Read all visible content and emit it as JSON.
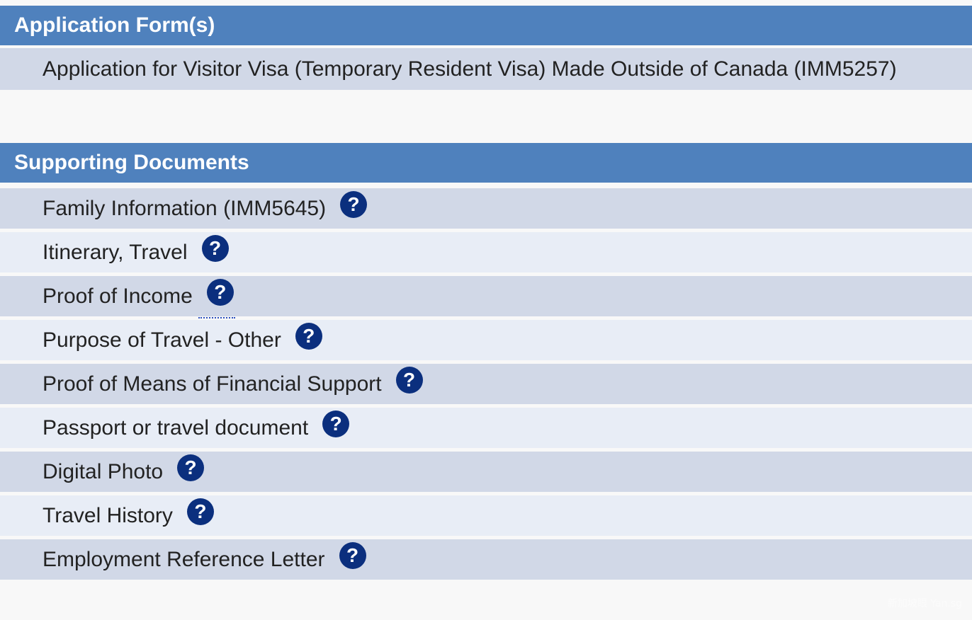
{
  "application_forms": {
    "title": "Application Form(s)",
    "items": [
      {
        "label": "Application for Visitor Visa (Temporary Resident Visa) Made Outside of Canada (IMM5257)"
      }
    ]
  },
  "supporting_documents": {
    "title": "Supporting Documents",
    "help_glyph": "?",
    "items": [
      {
        "label": "Family Information (IMM5645)"
      },
      {
        "label": "Itinerary, Travel"
      },
      {
        "label": "Proof of Income"
      },
      {
        "label": "Purpose of Travel - Other"
      },
      {
        "label": "Proof of Means of Financial Support"
      },
      {
        "label": "Passport or travel document"
      },
      {
        "label": "Digital Photo"
      },
      {
        "label": "Travel History"
      },
      {
        "label": "Employment Reference Letter"
      }
    ]
  },
  "watermark": "新加坡眼 Yan.sg",
  "colors": {
    "header_bg": "#4f81bd",
    "row_dark": "#d1d8e7",
    "row_light": "#e8edf6",
    "help_icon": "#0b2f7e"
  }
}
